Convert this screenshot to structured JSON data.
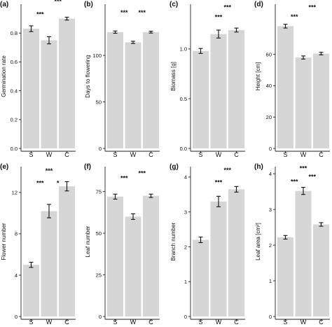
{
  "chart_data": [
    {
      "panel": "(a)",
      "type": "bar",
      "categories": [
        "S",
        "W",
        "C"
      ],
      "values": [
        0.83,
        0.75,
        0.9
      ],
      "errors": [
        0.02,
        0.025,
        0.01
      ],
      "ylabel": "Germination rate",
      "ylim": [
        0,
        1.0
      ],
      "yticks": [
        0.0,
        0.2,
        0.4,
        0.6,
        0.8
      ],
      "ytick_labels": [
        "0.0",
        "0.2",
        "0.4",
        "0.6",
        "0.8"
      ],
      "annotations": [
        {
          "text": "***",
          "x": 0.5,
          "y": 0.93
        },
        {
          "text": "***",
          "x": 1.5,
          "y": 1.02
        },
        {
          "text": "***",
          "x": 1.0,
          "y": 1.09
        }
      ]
    },
    {
      "panel": "(b)",
      "type": "bar",
      "categories": [
        "S",
        "W",
        "C"
      ],
      "values": [
        125,
        114,
        125
      ],
      "errors": [
        1.2,
        1.2,
        1.0
      ],
      "ylabel": "Days to flowering",
      "ylim": [
        0,
        155
      ],
      "yticks": [
        0,
        50,
        100
      ],
      "ytick_labels": [
        "0",
        "50",
        "100"
      ],
      "annotations": [
        {
          "text": "***",
          "x": 0.5,
          "y": 146
        },
        {
          "text": "***",
          "x": 1.5,
          "y": 146
        }
      ]
    },
    {
      "panel": "(c)",
      "type": "bar",
      "categories": [
        "S",
        "W",
        "C"
      ],
      "values": [
        0.98,
        1.15,
        1.19
      ],
      "errors": [
        0.025,
        0.04,
        0.02
      ],
      "ylabel": "Biomass [g]",
      "ylim": [
        0,
        1.45
      ],
      "yticks": [
        0.0,
        0.5,
        1.0
      ],
      "ytick_labels": [
        "0.0",
        "0.5",
        "1.0"
      ],
      "annotations": [
        {
          "text": "***",
          "x": 1.0,
          "y": 1.32
        },
        {
          "text": "***",
          "x": 1.5,
          "y": 1.42
        }
      ]
    },
    {
      "panel": "(d)",
      "type": "bar",
      "categories": [
        "S",
        "W",
        "C"
      ],
      "values": [
        78,
        58,
        60.5
      ],
      "errors": [
        1.2,
        1.0,
        0.8
      ],
      "ylabel": "Height [cm]",
      "ylim": [
        0,
        92
      ],
      "yticks": [
        0,
        20,
        40,
        60
      ],
      "ytick_labels": [
        "0",
        "20",
        "40",
        "60"
      ],
      "annotations": [
        {
          "text": "***",
          "x": 0.5,
          "y": 84
        },
        {
          "text": "***",
          "x": 1.5,
          "y": 90
        }
      ]
    },
    {
      "panel": "(e)",
      "type": "bar",
      "categories": [
        "S",
        "W",
        "C"
      ],
      "values": [
        5.0,
        10.2,
        12.6
      ],
      "errors": [
        0.25,
        0.65,
        0.45
      ],
      "ylabel": "Flower number",
      "ylim": [
        0,
        14.5
      ],
      "yticks": [
        0,
        4,
        8,
        12
      ],
      "ytick_labels": [
        "0",
        "4",
        "8",
        "12"
      ],
      "annotations": [
        {
          "text": "***",
          "x": 1.0,
          "y": 14.1
        },
        {
          "text": "***",
          "x": 0.5,
          "y": 12.9
        },
        {
          "text": "*",
          "x": 1.5,
          "y": 12.9
        }
      ]
    },
    {
      "panel": "(f)",
      "type": "bar",
      "categories": [
        "S",
        "W",
        "C"
      ],
      "values": [
        72,
        60,
        72.5
      ],
      "errors": [
        1.5,
        1.7,
        1.0
      ],
      "ylabel": "Leaf number",
      "ylim": [
        0,
        90
      ],
      "yticks": [
        0,
        25,
        50,
        75
      ],
      "ytick_labels": [
        "0",
        "25",
        "50",
        "75"
      ],
      "annotations": [
        {
          "text": "***",
          "x": 0.5,
          "y": 83
        },
        {
          "text": "***",
          "x": 1.5,
          "y": 86
        }
      ]
    },
    {
      "panel": "(g)",
      "type": "bar",
      "categories": [
        "S",
        "W",
        "C"
      ],
      "values": [
        2.2,
        3.3,
        3.65
      ],
      "errors": [
        0.08,
        0.15,
        0.08
      ],
      "ylabel": "Branch number",
      "ylim": [
        0,
        4.3
      ],
      "yticks": [
        0,
        1,
        2,
        3,
        4
      ],
      "ytick_labels": [
        "0",
        "1",
        "2",
        "3",
        "4"
      ],
      "annotations": [
        {
          "text": "***",
          "x": 1.0,
          "y": 3.85
        },
        {
          "text": "***",
          "x": 1.5,
          "y": 4.2
        }
      ]
    },
    {
      "panel": "(h)",
      "type": "bar",
      "categories": [
        "S",
        "W",
        "C"
      ],
      "values": [
        2.22,
        3.52,
        2.58
      ],
      "errors": [
        0.05,
        0.1,
        0.05
      ],
      "ylabel": "Leaf area [cm²]",
      "ylim": [
        0,
        4.2
      ],
      "yticks": [
        0,
        1,
        2,
        3,
        4
      ],
      "ytick_labels": [
        "0",
        "1",
        "2",
        "3",
        "4"
      ],
      "annotations": [
        {
          "text": "***",
          "x": 0.5,
          "y": 3.78
        },
        {
          "text": "***",
          "x": 1.0,
          "y": 4.15
        },
        {
          "text": "***",
          "x": 1.5,
          "y": 3.92
        }
      ]
    }
  ],
  "style": {
    "bar_color": "#d6d6d6",
    "axis_color": "#222222",
    "error_color": "#111111"
  }
}
